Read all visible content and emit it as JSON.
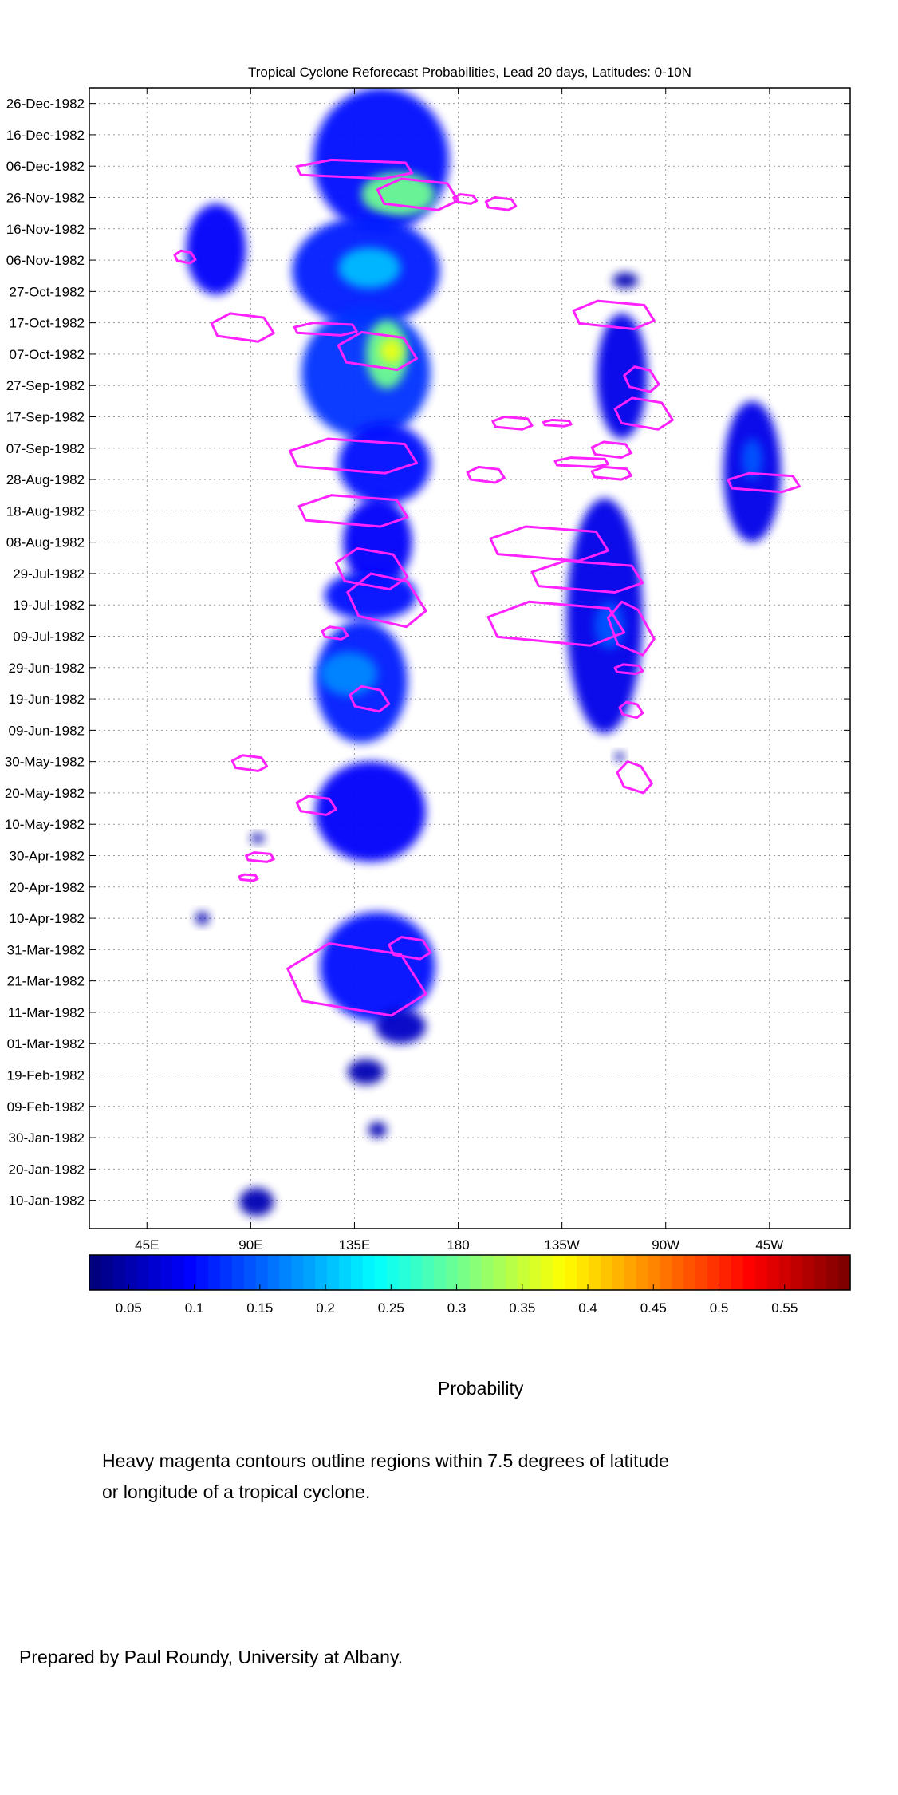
{
  "chart_data": {
    "type": "heatmap",
    "title": "Tropical Cyclone Reforecast Probabilities, Lead 20 days, Latitudes: 0-10N",
    "xlabel": "",
    "ylabel": "",
    "x_ticks": [
      "45E",
      "90E",
      "135E",
      "180",
      "135W",
      "90W",
      "45W"
    ],
    "x_tick_values": [
      45,
      90,
      135,
      180,
      225,
      270,
      315
    ],
    "xlim": [
      20,
      350
    ],
    "y_ticks": [
      "26-Dec-1982",
      "16-Dec-1982",
      "06-Dec-1982",
      "26-Nov-1982",
      "16-Nov-1982",
      "06-Nov-1982",
      "27-Oct-1982",
      "17-Oct-1982",
      "07-Oct-1982",
      "27-Sep-1982",
      "17-Sep-1982",
      "07-Sep-1982",
      "28-Aug-1982",
      "18-Aug-1982",
      "08-Aug-1982",
      "29-Jul-1982",
      "19-Jul-1982",
      "09-Jul-1982",
      "29-Jun-1982",
      "19-Jun-1982",
      "09-Jun-1982",
      "30-May-1982",
      "20-May-1982",
      "10-May-1982",
      "30-Apr-1982",
      "20-Apr-1982",
      "10-Apr-1982",
      "31-Mar-1982",
      "21-Mar-1982",
      "11-Mar-1982",
      "01-Mar-1982",
      "19-Feb-1982",
      "09-Feb-1982",
      "30-Jan-1982",
      "20-Jan-1982",
      "10-Jan-1982"
    ],
    "ylim": [
      "1982-01-01",
      "1982-12-31"
    ],
    "grid": true,
    "colorbar": {
      "title": "Probability",
      "ticks": [
        "0.05",
        "0.1",
        "0.15",
        "0.2",
        "0.25",
        "0.3",
        "0.35",
        "0.4",
        "0.45",
        "0.5",
        "0.55"
      ],
      "tick_values": [
        0.05,
        0.1,
        0.15,
        0.2,
        0.25,
        0.3,
        0.35,
        0.4,
        0.45,
        0.5,
        0.55
      ],
      "range": [
        0.02,
        0.6
      ],
      "colormap": "jet"
    },
    "blobs": [
      {
        "lon": [
          117,
          176
        ],
        "date": [
          "1982-11-15",
          "1982-12-31"
        ],
        "p": 0.1
      },
      {
        "lon": [
          138,
          170
        ],
        "date": [
          "1982-11-20",
          "1982-12-04"
        ],
        "p": 0.3
      },
      {
        "lon": [
          108,
          172
        ],
        "date": [
          "1982-10-16",
          "1982-11-20"
        ],
        "p": 0.11
      },
      {
        "lon": [
          128,
          155
        ],
        "date": [
          "1982-10-28",
          "1982-11-10"
        ],
        "p": 0.2
      },
      {
        "lon": [
          62,
          88
        ],
        "date": [
          "1982-10-26",
          "1982-11-24"
        ],
        "p": 0.09
      },
      {
        "lon": [
          112,
          168
        ],
        "date": [
          "1982-09-10",
          "1982-10-22"
        ],
        "p": 0.12
      },
      {
        "lon": [
          140,
          158
        ],
        "date": [
          "1982-09-26",
          "1982-10-18"
        ],
        "p": 0.3
      },
      {
        "lon": [
          146,
          156
        ],
        "date": [
          "1982-10-04",
          "1982-10-12"
        ],
        "p": 0.37
      },
      {
        "lon": [
          128,
          168
        ],
        "date": [
          "1982-08-20",
          "1982-09-15"
        ],
        "p": 0.1
      },
      {
        "lon": [
          130,
          160
        ],
        "date": [
          "1982-07-25",
          "1982-08-22"
        ],
        "p": 0.09
      },
      {
        "lon": [
          122,
          162
        ],
        "date": [
          "1982-07-14",
          "1982-07-30"
        ],
        "p": 0.1
      },
      {
        "lon": [
          118,
          158
        ],
        "date": [
          "1982-06-05",
          "1982-07-14"
        ],
        "p": 0.11
      },
      {
        "lon": [
          120,
          145
        ],
        "date": [
          "1982-06-20",
          "1982-07-04"
        ],
        "p": 0.17
      },
      {
        "lon": [
          118,
          166
        ],
        "date": [
          "1982-04-28",
          "1982-05-30"
        ],
        "p": 0.09
      },
      {
        "lon": [
          120,
          170
        ],
        "date": [
          "1982-03-08",
          "1982-04-12"
        ],
        "p": 0.1
      },
      {
        "lon": [
          144,
          166
        ],
        "date": [
          "1982-03-01",
          "1982-03-12"
        ],
        "p": 0.06
      },
      {
        "lon": [
          132,
          148
        ],
        "date": [
          "1982-02-16",
          "1982-02-24"
        ],
        "p": 0.05
      },
      {
        "lon": [
          141,
          149
        ],
        "date": [
          "1982-01-30",
          "1982-02-04"
        ],
        "p": 0.05
      },
      {
        "lon": [
          85,
          100
        ],
        "date": [
          "1982-01-05",
          "1982-01-14"
        ],
        "p": 0.05
      },
      {
        "lon": [
          240,
          262
        ],
        "date": [
          "1982-09-10",
          "1982-10-20"
        ],
        "p": 0.08
      },
      {
        "lon": [
          227,
          260
        ],
        "date": [
          "1982-06-08",
          "1982-08-22"
        ],
        "p": 0.08
      },
      {
        "lon": [
          239,
          252
        ],
        "date": [
          "1982-07-05",
          "1982-07-20"
        ],
        "p": 0.14
      },
      {
        "lon": [
          295,
          320
        ],
        "date": [
          "1982-08-08",
          "1982-09-22"
        ],
        "p": 0.08
      },
      {
        "lon": [
          303,
          312
        ],
        "date": [
          "1982-08-28",
          "1982-09-10"
        ],
        "p": 0.14
      },
      {
        "lon": [
          66,
          72
        ],
        "date": [
          "1982-04-08",
          "1982-04-12"
        ],
        "p": 0.05
      },
      {
        "lon": [
          90,
          96
        ],
        "date": [
          "1982-05-04",
          "1982-05-07"
        ],
        "p": 0.05
      },
      {
        "lon": [
          248,
          252
        ],
        "date": [
          "1982-05-30",
          "1982-06-02"
        ],
        "p": 0.05
      },
      {
        "lon": [
          247,
          258
        ],
        "date": [
          "1982-10-28",
          "1982-11-02"
        ],
        "p": 0.05
      }
    ],
    "tc_contours": [
      {
        "lon": [
          110,
          160
        ],
        "date": [
          "1982-12-02",
          "1982-12-08"
        ]
      },
      {
        "lon": [
          145,
          180
        ],
        "date": [
          "1982-11-22",
          "1982-12-02"
        ]
      },
      {
        "lon": [
          178,
          188
        ],
        "date": [
          "1982-11-24",
          "1982-11-27"
        ]
      },
      {
        "lon": [
          192,
          205
        ],
        "date": [
          "1982-11-22",
          "1982-11-26"
        ]
      },
      {
        "lon": [
          57,
          66
        ],
        "date": [
          "1982-11-05",
          "1982-11-09"
        ]
      },
      {
        "lon": [
          73,
          100
        ],
        "date": [
          "1982-10-11",
          "1982-10-20"
        ]
      },
      {
        "lon": [
          109,
          136
        ],
        "date": [
          "1982-10-13",
          "1982-10-17"
        ]
      },
      {
        "lon": [
          128,
          162
        ],
        "date": [
          "1982-10-02",
          "1982-10-14"
        ]
      },
      {
        "lon": [
          230,
          265
        ],
        "date": [
          "1982-10-15",
          "1982-10-24"
        ]
      },
      {
        "lon": [
          252,
          267
        ],
        "date": [
          "1982-09-25",
          "1982-10-03"
        ]
      },
      {
        "lon": [
          248,
          273
        ],
        "date": [
          "1982-09-13",
          "1982-09-23"
        ]
      },
      {
        "lon": [
          195,
          212
        ],
        "date": [
          "1982-09-13",
          "1982-09-17"
        ]
      },
      {
        "lon": [
          217,
          229
        ],
        "date": [
          "1982-09-14",
          "1982-09-16"
        ]
      },
      {
        "lon": [
          238,
          255
        ],
        "date": [
          "1982-09-04",
          "1982-09-09"
        ]
      },
      {
        "lon": [
          107,
          162
        ],
        "date": [
          "1982-08-30",
          "1982-09-10"
        ]
      },
      {
        "lon": [
          184,
          200
        ],
        "date": [
          "1982-08-27",
          "1982-09-01"
        ]
      },
      {
        "lon": [
          238,
          255
        ],
        "date": [
          "1982-08-28",
          "1982-09-01"
        ]
      },
      {
        "lon": [
          222,
          245
        ],
        "date": [
          "1982-09-01",
          "1982-09-04"
        ]
      },
      {
        "lon": [
          297,
          328
        ],
        "date": [
          "1982-08-24",
          "1982-08-30"
        ]
      },
      {
        "lon": [
          111,
          158
        ],
        "date": [
          "1982-08-13",
          "1982-08-23"
        ]
      },
      {
        "lon": [
          127,
          158
        ],
        "date": [
          "1982-07-24",
          "1982-08-06"
        ]
      },
      {
        "lon": [
          132,
          166
        ],
        "date": [
          "1982-07-12",
          "1982-07-29"
        ]
      },
      {
        "lon": [
          121,
          132
        ],
        "date": [
          "1982-07-08",
          "1982-07-12"
        ]
      },
      {
        "lon": [
          133,
          150
        ],
        "date": [
          "1982-06-15",
          "1982-06-23"
        ]
      },
      {
        "lon": [
          194,
          245
        ],
        "date": [
          "1982-08-02",
          "1982-08-13"
        ]
      },
      {
        "lon": [
          212,
          260
        ],
        "date": [
          "1982-07-23",
          "1982-08-02"
        ]
      },
      {
        "lon": [
          193,
          252
        ],
        "date": [
          "1982-07-06",
          "1982-07-20"
        ]
      },
      {
        "lon": [
          245,
          265
        ],
        "date": [
          "1982-07-03",
          "1982-07-20"
        ]
      },
      {
        "lon": [
          248,
          260
        ],
        "date": [
          "1982-06-27",
          "1982-06-30"
        ]
      },
      {
        "lon": [
          250,
          260
        ],
        "date": [
          "1982-06-13",
          "1982-06-18"
        ]
      },
      {
        "lon": [
          249,
          264
        ],
        "date": [
          "1982-05-20",
          "1982-05-30"
        ]
      },
      {
        "lon": [
          82,
          97
        ],
        "date": [
          "1982-05-27",
          "1982-06-01"
        ]
      },
      {
        "lon": [
          110,
          127
        ],
        "date": [
          "1982-05-13",
          "1982-05-19"
        ]
      },
      {
        "lon": [
          88,
          100
        ],
        "date": [
          "1982-04-28",
          "1982-05-01"
        ]
      },
      {
        "lon": [
          85,
          93
        ],
        "date": [
          "1982-04-22",
          "1982-04-24"
        ]
      },
      {
        "lon": [
          106,
          166
        ],
        "date": [
          "1982-03-10",
          "1982-04-02"
        ]
      },
      {
        "lon": [
          150,
          168
        ],
        "date": [
          "1982-03-28",
          "1982-04-04"
        ]
      }
    ]
  },
  "notes": {
    "line1": "Heavy magenta contours outline regions within 7.5 degrees of latitude",
    "line2": "or longitude of a tropical cyclone.",
    "credit": "Prepared by Paul Roundy, University at Albany."
  },
  "colors": {
    "contour": "#ff22ff",
    "grid": "#9a9a9a",
    "axis": "#000000"
  }
}
